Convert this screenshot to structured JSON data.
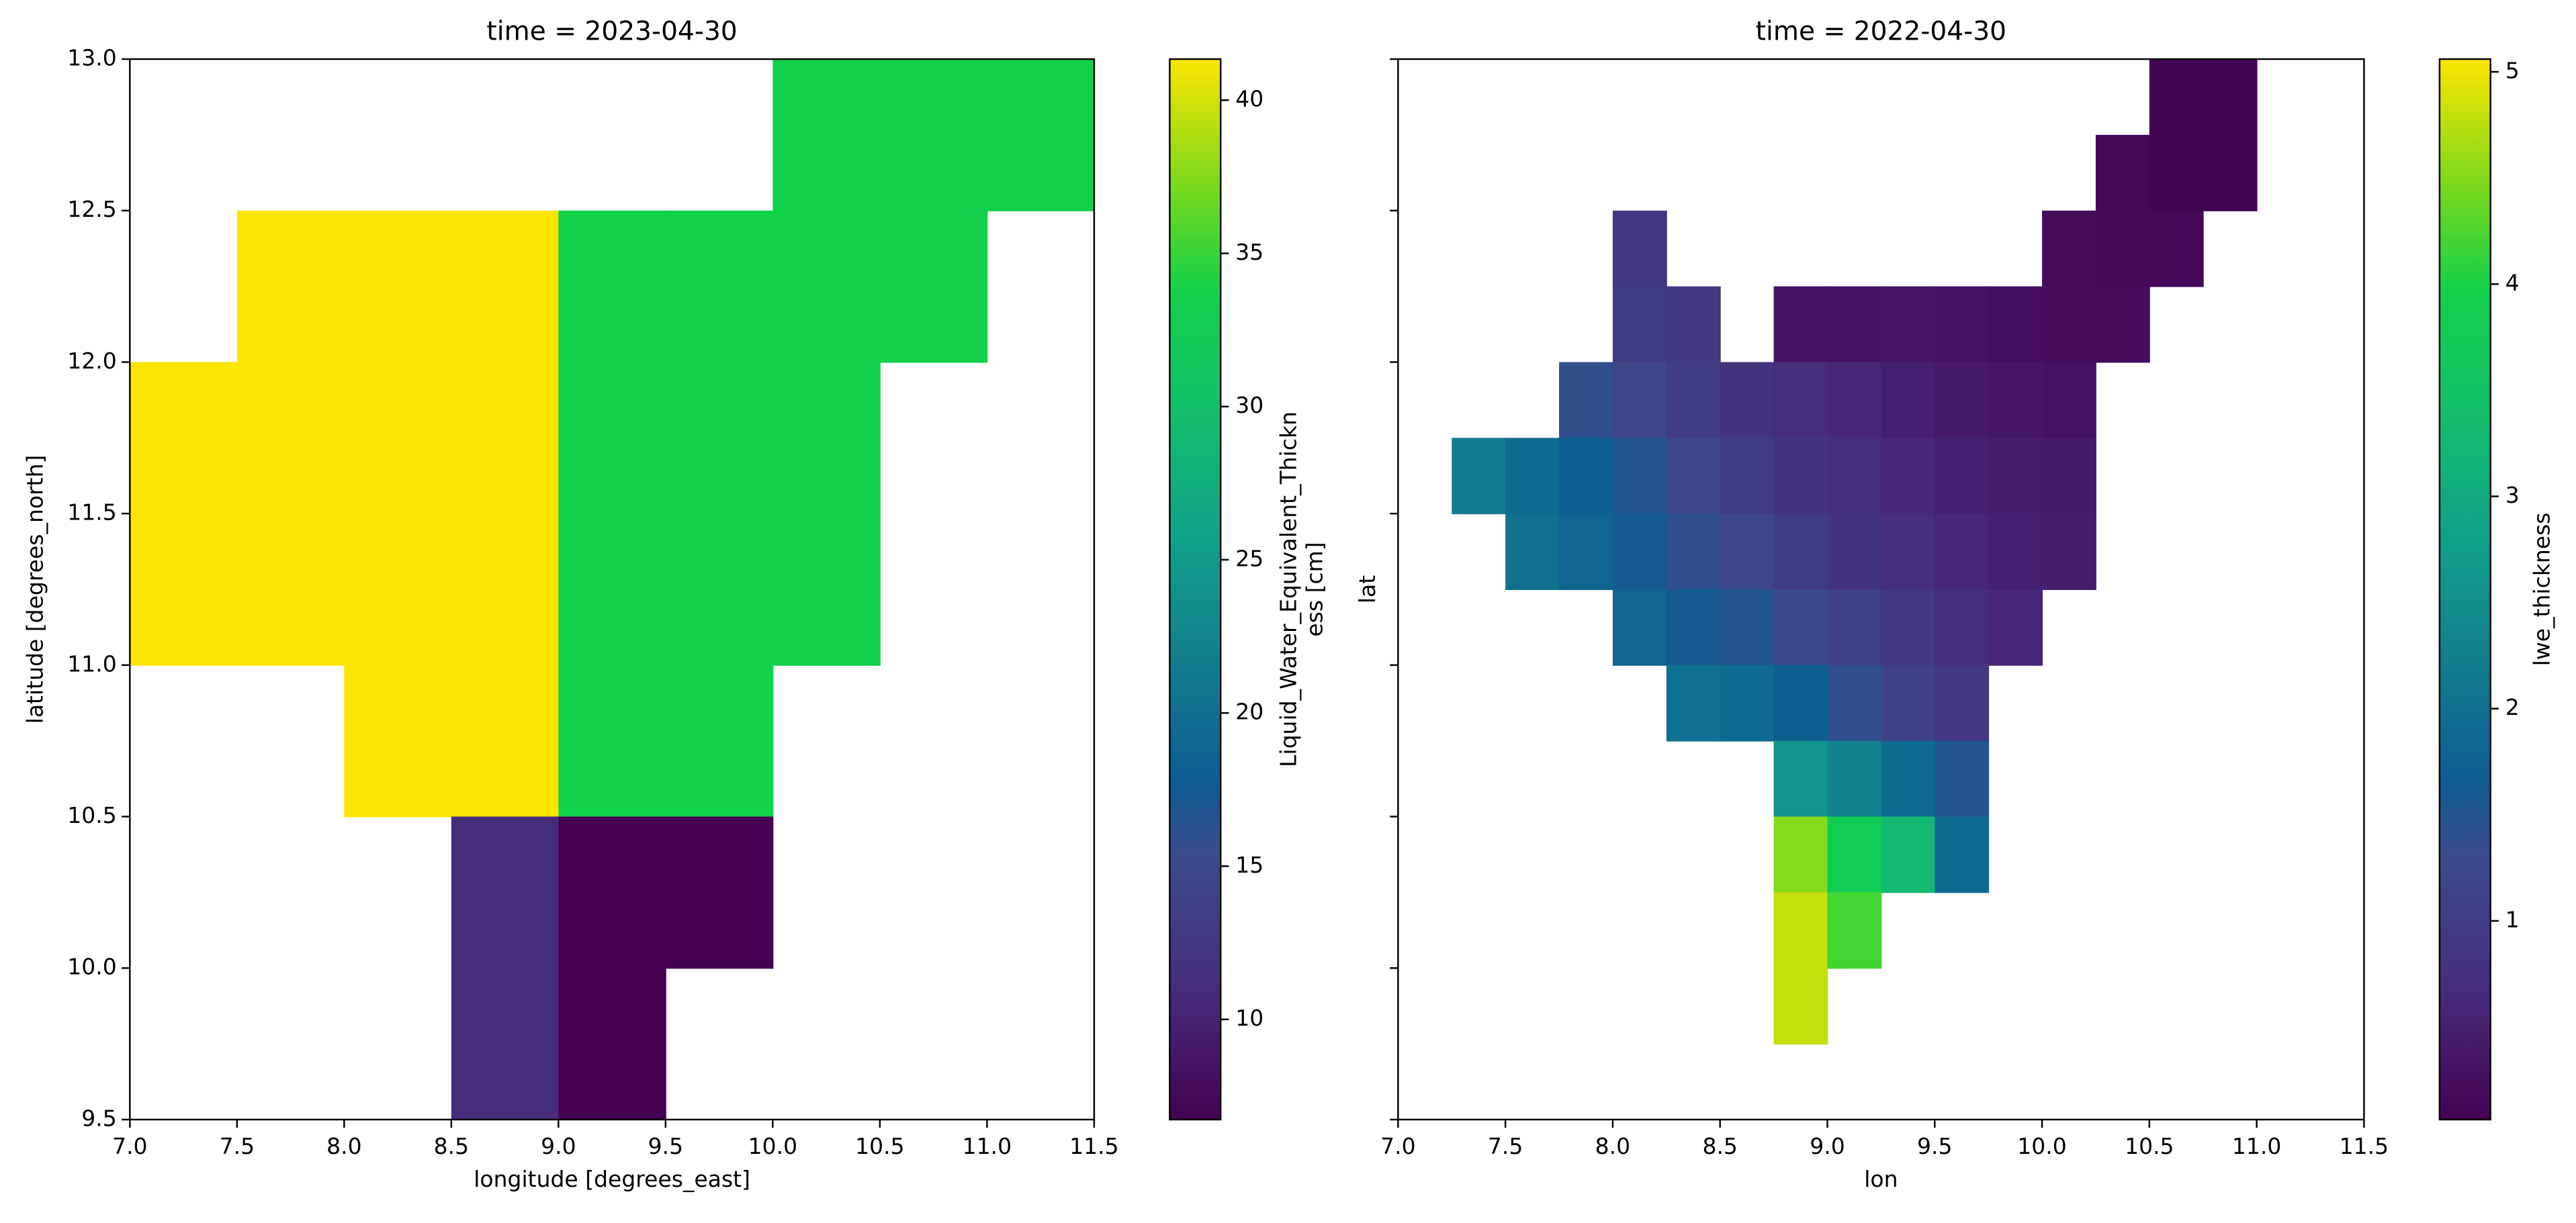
{
  "chart_data": [
    {
      "type": "heatmap",
      "title": "time = 2023-04-30",
      "xlabel": "longitude [degrees_east]",
      "ylabel": "latitude [degrees_north]",
      "colormap": "viridis",
      "x": [
        7.25,
        7.75,
        8.25,
        8.75,
        9.25,
        9.75,
        10.25,
        10.75,
        11.25
      ],
      "y": [
        12.75,
        12.25,
        11.75,
        11.25,
        10.75,
        10.25,
        9.75
      ],
      "z": [
        [
          null,
          null,
          null,
          null,
          null,
          null,
          33.7,
          33.7,
          33.7
        ],
        [
          null,
          41.3,
          41.3,
          41.3,
          33.7,
          33.7,
          33.7,
          33.7,
          null
        ],
        [
          41.3,
          41.3,
          41.3,
          41.3,
          33.7,
          33.7,
          33.7,
          null,
          null
        ],
        [
          41.3,
          41.3,
          41.3,
          41.3,
          33.7,
          33.7,
          33.7,
          null,
          null
        ],
        [
          null,
          null,
          41.3,
          41.3,
          33.7,
          33.7,
          null,
          null,
          null
        ],
        [
          null,
          null,
          null,
          10.9,
          6.7,
          6.7,
          null,
          null,
          null
        ],
        [
          null,
          null,
          null,
          10.9,
          6.7,
          null,
          null,
          null,
          null
        ]
      ],
      "xlim": [
        7.0,
        11.5
      ],
      "ylim": [
        9.5,
        13.0
      ],
      "xticks": [
        {
          "value": 7,
          "label": "7.0"
        },
        7.5,
        {
          "value": 8,
          "label": "8.0"
        },
        8.5,
        {
          "value": 9,
          "label": "9.0"
        },
        9.5,
        {
          "value": 10,
          "label": "10.0"
        },
        10.5,
        {
          "value": 11,
          "label": "11.0"
        },
        11.5
      ],
      "yticks": [
        9.5,
        {
          "value": 10,
          "label": "10.0"
        },
        10.5,
        {
          "value": 11,
          "label": "11.0"
        },
        11.5,
        {
          "value": 12,
          "label": "12.0"
        },
        12.5,
        {
          "value": 13,
          "label": "13.0"
        }
      ],
      "colorbar": {
        "label": [
          "Liquid_Water_Equivalent_Thickn",
          "ess [cm]"
        ],
        "lim": [
          6.73,
          41.34
        ],
        "ticks": [
          10,
          15,
          20,
          25,
          30,
          35,
          40
        ]
      }
    },
    {
      "type": "heatmap",
      "title": "time = 2022-04-30",
      "xlabel": "lon",
      "ylabel": "lat",
      "colormap": "viridis",
      "x": [
        7.375,
        7.625,
        7.875,
        8.125,
        8.375,
        8.625,
        8.875,
        9.125,
        9.375,
        9.625,
        9.875,
        10.125,
        10.375,
        10.625,
        10.875
      ],
      "y": [
        12.875,
        12.625,
        12.375,
        12.125,
        11.875,
        11.625,
        11.375,
        11.125,
        10.875,
        10.625,
        10.375,
        10.125,
        9.875
      ],
      "z": [
        [
          null,
          null,
          null,
          null,
          null,
          null,
          null,
          null,
          null,
          null,
          null,
          null,
          null,
          0.1,
          0.1
        ],
        [
          null,
          null,
          null,
          null,
          null,
          null,
          null,
          null,
          null,
          null,
          null,
          null,
          0.15,
          0.1,
          0.1
        ],
        [
          null,
          null,
          null,
          0.9,
          null,
          null,
          null,
          null,
          null,
          null,
          null,
          0.2,
          0.15,
          0.15,
          null
        ],
        [
          null,
          null,
          null,
          1.0,
          0.9,
          null,
          0.3,
          0.3,
          0.35,
          0.3,
          0.25,
          0.2,
          0.2,
          null,
          null
        ],
        [
          null,
          null,
          1.4,
          1.2,
          1.0,
          0.8,
          0.7,
          0.6,
          0.5,
          0.4,
          0.35,
          0.3,
          null,
          null,
          null
        ],
        [
          2.2,
          1.9,
          1.7,
          1.5,
          1.2,
          1.0,
          0.8,
          0.7,
          0.6,
          0.5,
          0.45,
          0.4,
          null,
          null,
          null
        ],
        [
          null,
          2.0,
          1.8,
          1.6,
          1.4,
          1.2,
          1.0,
          0.8,
          0.7,
          0.6,
          0.5,
          0.45,
          null,
          null,
          null
        ],
        [
          null,
          null,
          null,
          1.8,
          1.6,
          1.5,
          1.3,
          1.1,
          0.9,
          0.7,
          0.6,
          null,
          null,
          null,
          null
        ],
        [
          null,
          null,
          null,
          null,
          2.0,
          1.9,
          1.7,
          1.4,
          1.1,
          0.9,
          null,
          null,
          null,
          null,
          null
        ],
        [
          null,
          null,
          null,
          null,
          null,
          null,
          2.6,
          2.3,
          1.9,
          1.5,
          null,
          null,
          null,
          null,
          null
        ],
        [
          null,
          null,
          null,
          null,
          null,
          null,
          4.5,
          3.8,
          3.3,
          1.9,
          null,
          null,
          null,
          null,
          null
        ],
        [
          null,
          null,
          null,
          null,
          null,
          null,
          4.8,
          4.2,
          null,
          null,
          null,
          null,
          null,
          null,
          null
        ],
        [
          null,
          null,
          null,
          null,
          null,
          null,
          4.8,
          null,
          null,
          null,
          null,
          null,
          null,
          null,
          null
        ]
      ],
      "xlim": [
        7.0,
        11.5
      ],
      "ylim": [
        9.5,
        13.0
      ],
      "xticks": [
        {
          "value": 7,
          "label": "7.0"
        },
        7.5,
        {
          "value": 8,
          "label": "8.0"
        },
        8.5,
        {
          "value": 9,
          "label": "9.0"
        },
        9.5,
        {
          "value": 10,
          "label": "10.0"
        },
        10.5,
        {
          "value": 11,
          "label": "11.0"
        },
        11.5
      ],
      "yticks": [
        9.5,
        10,
        10.5,
        11,
        11.5,
        12,
        12.5,
        13
      ],
      "yticklabels": false,
      "colorbar": {
        "label": [
          "lwe_thickness"
        ],
        "lim": [
          0.064,
          5.06
        ],
        "ticks": [
          1,
          2,
          3,
          4,
          5
        ]
      }
    }
  ]
}
